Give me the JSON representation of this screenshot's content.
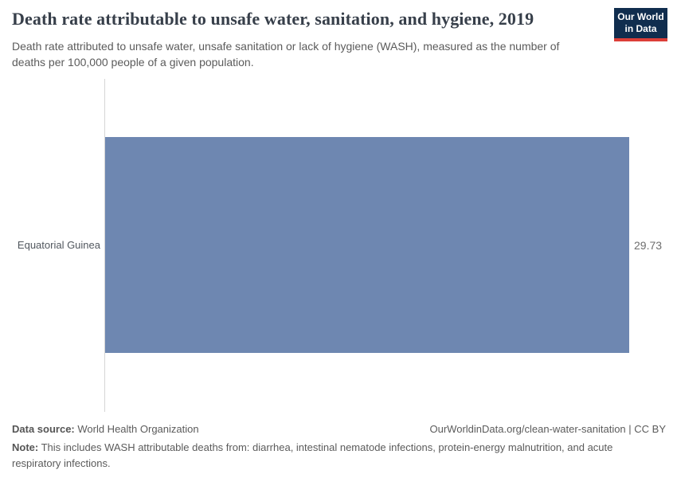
{
  "header": {
    "title": "Death rate attributable to unsafe water, sanitation, and hygiene, 2019",
    "subtitle": "Death rate attributed to unsafe water, unsafe sanitation or lack of hygiene (WASH), measured as the number of deaths per 100,000 people of a given population.",
    "logo": {
      "line1": "Our World",
      "line2": "in Data"
    }
  },
  "chart_data": {
    "type": "bar",
    "orientation": "horizontal",
    "title": "Death rate attributable to unsafe water, sanitation, and hygiene, 2019",
    "categories": [
      "Equatorial Guinea"
    ],
    "values": [
      29.73
    ],
    "value_labels": [
      "29.73"
    ],
    "xlim": [
      0,
      29.73
    ],
    "grid": false,
    "legend": "none",
    "bar_color": "#6e87b1"
  },
  "footer": {
    "source_label": "Data source:",
    "source_value": " World Health Organization",
    "citation": "OurWorldinData.org/clean-water-sanitation | CC BY",
    "note_label": "Note:",
    "note_text": " This includes WASH attributable deaths from: diarrhea, intestinal nematode infections, protein-energy malnutrition, and acute respiratory infections."
  },
  "colors": {
    "bar": "#6e87b1",
    "logo_bg": "#102d4e",
    "logo_stripe": "#dc3e38",
    "axis_line": "#d5d5d5",
    "title_text": "#373f4a",
    "body_text": "#5b5b5b"
  }
}
